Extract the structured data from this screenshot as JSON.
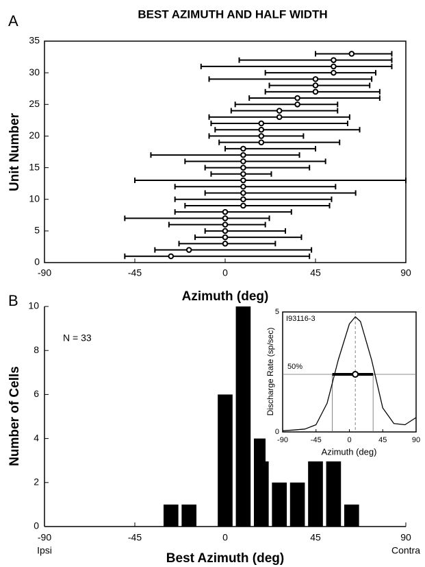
{
  "chart_data": [
    {
      "type": "errorbar",
      "panel": "A",
      "title": "BEST AZIMUTH AND HALF WIDTH",
      "x_label": "Azimuth (deg)",
      "y_label": "Unit Number",
      "units": [
        1,
        2,
        3,
        4,
        5,
        6,
        7,
        8,
        9,
        10,
        11,
        12,
        13,
        14,
        15,
        16,
        17,
        18,
        19,
        20,
        21,
        22,
        23,
        24,
        25,
        26,
        27,
        28,
        29,
        30,
        31,
        32,
        33
      ],
      "best_azimuth": [
        -27,
        -18,
        0,
        0,
        0,
        0,
        0,
        0,
        9,
        9,
        9,
        9,
        9,
        9,
        9,
        9,
        9,
        9,
        18,
        18,
        18,
        18,
        27,
        27,
        36,
        36,
        45,
        45,
        45,
        54,
        54,
        54,
        63
      ],
      "lower": [
        -50,
        -35,
        -23,
        -15,
        -10,
        -28,
        -50,
        -25,
        -20,
        -25,
        -10,
        -25,
        -45,
        -7,
        -10,
        -20,
        -37,
        0,
        -3,
        -8,
        -5,
        -7,
        -8,
        3,
        5,
        12,
        20,
        22,
        -8,
        20,
        -12,
        7,
        45
      ],
      "upper": [
        42,
        43,
        25,
        38,
        30,
        20,
        22,
        33,
        52,
        53,
        65,
        55,
        90,
        23,
        42,
        50,
        37,
        45,
        57,
        39,
        67,
        61,
        62,
        56,
        56,
        77,
        77,
        72,
        73,
        75,
        83,
        83,
        83
      ],
      "color": "#000000",
      "xlim": [
        -90,
        90
      ],
      "xticks": [
        -90,
        -45,
        0,
        45,
        90
      ],
      "ylim": [
        0,
        35
      ],
      "yticks": [
        0,
        5,
        10,
        15,
        20,
        25,
        30,
        35
      ]
    },
    {
      "type": "bar",
      "panel": "B",
      "x_label": "Best Azimuth (deg)",
      "y_label": "Number of Cells",
      "annotation": "N = 33",
      "left_label": "Ipsi",
      "right_label": "Contra",
      "x": [
        -27,
        -18,
        0,
        9,
        18,
        27,
        36,
        45,
        54,
        63
      ],
      "values": [
        1,
        1,
        6,
        10,
        4,
        2,
        2,
        3,
        3,
        1
      ],
      "color": "#000000",
      "xlim": [
        -90,
        90
      ],
      "xticks": [
        -90,
        -45,
        0,
        45,
        90
      ],
      "ylim": [
        0,
        10
      ],
      "yticks": [
        0,
        2,
        4,
        6,
        8,
        10
      ]
    },
    {
      "type": "line",
      "unit_id": "I93116-3",
      "x_label": "Azimuth (deg)",
      "y_label": "Discharge Rate (sp/sec)",
      "x": [
        -90,
        -75,
        -60,
        -45,
        -30,
        -15,
        0,
        8,
        15,
        30,
        45,
        60,
        75,
        90
      ],
      "values": [
        0.05,
        0.08,
        0.12,
        0.3,
        1.2,
        3.0,
        4.5,
        4.8,
        4.6,
        3.0,
        1.0,
        0.35,
        0.3,
        0.6
      ],
      "half_max": 2.4,
      "half_max_label": "50%",
      "best": 8,
      "half_width": [
        -23,
        32
      ],
      "color": "#000000",
      "xlim": [
        -90,
        90
      ],
      "xticks": [
        -90,
        -45,
        0,
        45,
        90
      ],
      "ylim": [
        0,
        5
      ],
      "yticks": [
        0,
        5
      ]
    }
  ]
}
